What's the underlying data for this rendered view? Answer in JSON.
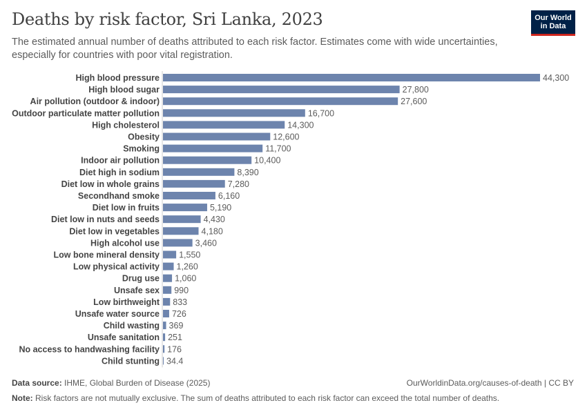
{
  "header": {
    "title": "Deaths by risk factor, Sri Lanka, 2023",
    "subtitle": "The estimated annual number of deaths attributed to each risk factor. Estimates come with wide uncertainties, especially for countries with poor vital registration.",
    "logo_line1": "Our World",
    "logo_line2": "in Data"
  },
  "footer": {
    "source_label": "Data source:",
    "source_text": " IHME, Global Burden of Disease (2025)",
    "url_text": "OurWorldinData.org/causes-of-death | CC BY",
    "note_label": "Note:",
    "note_text": " Risk factors are not mutually exclusive. The sum of deaths attributed to each risk factor can exceed the total number of deaths."
  },
  "colors": {
    "bar": "#6d84ad",
    "axis": "#cccccc",
    "label": "#444444",
    "value": "#5b5b5b"
  },
  "chart_data": {
    "type": "bar",
    "orientation": "horizontal",
    "title": "Deaths by risk factor, Sri Lanka, 2023",
    "xlabel": "",
    "ylabel": "",
    "xlim": [
      0,
      44300
    ],
    "categories": [
      "High blood pressure",
      "High blood sugar",
      "Air pollution (outdoor & indoor)",
      "Outdoor particulate matter pollution",
      "High cholesterol",
      "Obesity",
      "Smoking",
      "Indoor air pollution",
      "Diet high in sodium",
      "Diet low in whole grains",
      "Secondhand smoke",
      "Diet low in fruits",
      "Diet low in nuts and seeds",
      "Diet low in vegetables",
      "High alcohol use",
      "Low bone mineral density",
      "Low physical activity",
      "Drug use",
      "Unsafe sex",
      "Low birthweight",
      "Unsafe water source",
      "Child wasting",
      "Unsafe sanitation",
      "No access to handwashing facility",
      "Child stunting"
    ],
    "values": [
      44300,
      27800,
      27600,
      16700,
      14300,
      12600,
      11700,
      10400,
      8390,
      7280,
      6160,
      5190,
      4430,
      4180,
      3460,
      1550,
      1260,
      1060,
      990,
      833,
      726,
      369,
      251,
      176,
      34.4
    ],
    "value_labels": [
      "44,300",
      "27,800",
      "27,600",
      "16,700",
      "14,300",
      "12,600",
      "11,700",
      "10,400",
      "8,390",
      "7,280",
      "6,160",
      "5,190",
      "4,430",
      "4,180",
      "3,460",
      "1,550",
      "1,260",
      "1,060",
      "990",
      "833",
      "726",
      "369",
      "251",
      "176",
      "34.4"
    ]
  }
}
